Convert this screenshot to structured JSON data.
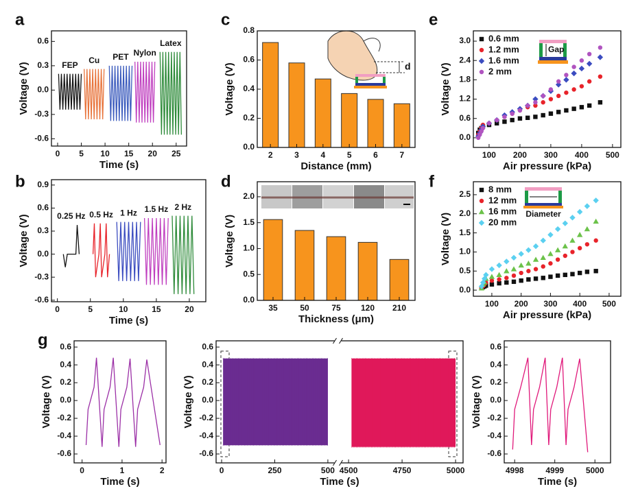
{
  "chart_data": [
    {
      "type": "line",
      "label": "a",
      "xlabel": "Time (s)",
      "ylabel": "Voltage (V)",
      "xlim": [
        -1.3,
        27.2
      ],
      "ylim": [
        -0.69,
        0.73
      ],
      "xticks": [
        0,
        5,
        10,
        15,
        20,
        25
      ],
      "yticks": [
        -0.6,
        -0.3,
        {
          "value": 0,
          "label": "0.0"
        },
        0.3,
        0.6
      ],
      "series": [
        {
          "name": "FEP",
          "color": "#111111",
          "x": [
            0.2,
            0.5,
            0.8,
            1.1,
            1.4,
            1.7,
            2.0,
            2.3,
            2.6,
            2.9,
            3.2,
            3.5,
            3.8,
            4.1,
            4.4,
            4.7,
            5.0
          ],
          "values": [
            0.2,
            -0.24,
            0.2,
            -0.24,
            0.2,
            -0.24,
            0.2,
            -0.24,
            0.2,
            -0.24,
            0.2,
            -0.24,
            0.2,
            -0.24,
            0.2,
            -0.24,
            0.2
          ]
        },
        {
          "name": "Cu",
          "color": "#e8743b",
          "x": [
            5.6,
            5.9,
            6.2,
            6.5,
            6.8,
            7.1,
            7.4,
            7.7,
            8.0,
            8.3,
            8.6,
            8.9,
            9.2,
            9.5,
            9.8
          ],
          "values": [
            0.26,
            -0.36,
            0.26,
            -0.36,
            0.26,
            -0.36,
            0.26,
            -0.36,
            0.26,
            -0.36,
            0.26,
            -0.36,
            0.26,
            -0.36,
            0.26
          ]
        },
        {
          "name": "PET",
          "color": "#3b5bbd",
          "x": [
            10.9,
            11.2,
            11.5,
            11.8,
            12.1,
            12.4,
            12.7,
            13.0,
            13.3,
            13.6,
            13.9,
            14.2,
            14.5,
            14.8,
            15.1,
            15.4,
            15.7
          ],
          "values": [
            0.3,
            -0.38,
            0.3,
            -0.38,
            0.3,
            -0.38,
            0.3,
            -0.38,
            0.3,
            -0.38,
            0.3,
            -0.38,
            0.3,
            -0.38,
            0.3,
            -0.38,
            0.3
          ]
        },
        {
          "name": "Nylon",
          "color": "#c040c0",
          "x": [
            16.3,
            16.6,
            16.9,
            17.2,
            17.5,
            17.8,
            18.1,
            18.4,
            18.7,
            19.0,
            19.3,
            19.6,
            19.9,
            20.2,
            20.5
          ],
          "values": [
            0.35,
            -0.4,
            0.35,
            -0.4,
            0.35,
            -0.4,
            0.35,
            -0.4,
            0.35,
            -0.4,
            0.35,
            -0.4,
            0.35,
            -0.4,
            0.35
          ]
        },
        {
          "name": "Latex",
          "color": "#2e8b3a",
          "x": [
            21.6,
            21.9,
            22.2,
            22.5,
            22.8,
            23.1,
            23.4,
            23.7,
            24.0,
            24.3,
            24.6,
            24.9,
            25.2,
            25.5,
            25.8,
            26.1
          ],
          "values": [
            0.47,
            -0.55,
            0.47,
            -0.55,
            0.47,
            -0.55,
            0.47,
            -0.55,
            0.47,
            -0.55,
            0.47,
            -0.55,
            0.47,
            -0.55,
            0.47,
            -0.55
          ]
        }
      ]
    },
    {
      "type": "line",
      "label": "b",
      "xlabel": "Time (s)",
      "ylabel": "Voltage (V)",
      "xlim": [
        -0.9,
        22.5
      ],
      "ylim": [
        -0.62,
        0.97
      ],
      "xticks": [
        0,
        5,
        10,
        15,
        20
      ],
      "yticks": [
        -0.6,
        -0.3,
        {
          "value": 0,
          "label": "0.0"
        },
        0.3,
        0.6,
        0.9
      ],
      "series": [
        {
          "name": "0.25 Hz",
          "color": "#111111",
          "x": [
            0.9,
            1.2,
            1.5,
            2.8,
            3.0,
            3.3
          ],
          "values": [
            0,
            -0.17,
            0,
            0,
            0.38,
            0
          ]
        },
        {
          "name": "0.5 Hz",
          "color": "#e8232a",
          "x": [
            5.4,
            5.6,
            5.8,
            6.3,
            6.5,
            6.7,
            7.2,
            7.4,
            7.6,
            7.9
          ],
          "values": [
            0,
            0.4,
            -0.3,
            0,
            0.4,
            -0.3,
            0,
            0.4,
            -0.3,
            0
          ]
        },
        {
          "name": "1 Hz",
          "color": "#3b4cc0",
          "x": [
            9.0,
            9.3,
            9.6,
            9.9,
            10.2,
            10.5,
            10.8,
            11.1,
            11.4,
            11.7,
            12.0,
            12.3,
            12.6
          ],
          "values": [
            0.42,
            -0.35,
            0.42,
            -0.35,
            0.42,
            -0.35,
            0.42,
            -0.35,
            0.42,
            -0.35,
            0.42,
            -0.35,
            0.42
          ]
        },
        {
          "name": "1.5 Hz",
          "color": "#c040c0",
          "x": [
            13.2,
            13.5,
            13.8,
            14.1,
            14.4,
            14.7,
            15.0,
            15.3,
            15.6,
            15.9,
            16.2,
            16.5,
            16.8
          ],
          "values": [
            0.47,
            -0.4,
            0.47,
            -0.4,
            0.47,
            -0.4,
            0.47,
            -0.4,
            0.47,
            -0.4,
            0.47,
            -0.4,
            0.47
          ]
        },
        {
          "name": "2 Hz",
          "color": "#2e8b3a",
          "x": [
            17.4,
            17.7,
            18.0,
            18.3,
            18.6,
            18.9,
            19.2,
            19.5,
            19.8,
            20.1,
            20.4,
            20.7
          ],
          "values": [
            0.5,
            -0.52,
            0.5,
            -0.52,
            0.5,
            -0.52,
            0.5,
            -0.52,
            0.5,
            -0.52,
            0.5,
            -0.52
          ]
        }
      ]
    },
    {
      "type": "bar",
      "label": "c",
      "xlabel": "Distance (mm)",
      "ylabel": "Voltage (V)",
      "inset_label": "d",
      "color": "#f7941d",
      "categories": [
        "2",
        "3",
        "4",
        "5",
        "6",
        "7"
      ],
      "values": [
        0.72,
        0.58,
        0.47,
        0.37,
        0.33,
        0.3
      ],
      "ylim": [
        0,
        0.8
      ],
      "yticks": [
        {
          "value": 0,
          "label": "0.0"
        },
        0.2,
        0.4,
        0.6,
        0.8
      ]
    },
    {
      "type": "bar",
      "label": "d",
      "xlabel": "Thickness (μm)",
      "ylabel": "Voltage (V)",
      "color": "#f7941d",
      "categories": [
        "35",
        "50",
        "75",
        "120",
        "210"
      ],
      "values": [
        1.56,
        1.35,
        1.23,
        1.12,
        0.79
      ],
      "ylim": [
        0,
        2.29
      ],
      "yticks": [
        {
          "value": 0,
          "label": "0.0"
        },
        0.5,
        {
          "value": 1,
          "label": "1.0"
        },
        1.5,
        {
          "value": 2,
          "label": "2.0"
        }
      ]
    },
    {
      "type": "scatter",
      "label": "e",
      "xlabel": "Air pressure (kPa)",
      "ylabel": "Voltage (V)",
      "inset_label": "Gap",
      "xlim": [
        49,
        527
      ],
      "ylim": [
        -0.3,
        3.32
      ],
      "xticks": [
        100,
        200,
        300,
        400,
        500
      ],
      "yticks": [
        {
          "value": 0,
          "label": "0.0"
        },
        0.6,
        1.2,
        1.8,
        2.4,
        {
          "value": 3,
          "label": "3.0"
        }
      ],
      "series": [
        {
          "name": "0.6 mm",
          "color": "#111111",
          "marker": "square",
          "x": [
            65,
            70,
            75,
            80,
            100,
            125,
            150,
            175,
            200,
            225,
            250,
            275,
            300,
            325,
            350,
            375,
            400,
            425,
            460
          ],
          "values": [
            0.15,
            0.25,
            0.3,
            0.35,
            0.4,
            0.45,
            0.5,
            0.55,
            0.6,
            0.62,
            0.65,
            0.7,
            0.75,
            0.8,
            0.85,
            0.9,
            0.95,
            1.0,
            1.1
          ]
        },
        {
          "name": "1.2 mm",
          "color": "#e8232a",
          "marker": "circle",
          "x": [
            65,
            70,
            75,
            80,
            100,
            125,
            150,
            175,
            200,
            225,
            250,
            275,
            300,
            325,
            350,
            375,
            400,
            425,
            460
          ],
          "values": [
            0.1,
            0.2,
            0.3,
            0.4,
            0.45,
            0.55,
            0.65,
            0.75,
            0.85,
            0.95,
            1.0,
            1.1,
            1.2,
            1.3,
            1.4,
            1.5,
            1.6,
            1.75,
            1.9
          ]
        },
        {
          "name": "1.6 mm",
          "color": "#3b4cc0",
          "marker": "diamond",
          "x": [
            65,
            70,
            75,
            80,
            100,
            125,
            150,
            175,
            200,
            225,
            250,
            275,
            300,
            325,
            350,
            375,
            400,
            425,
            460
          ],
          "values": [
            0.05,
            0.15,
            0.25,
            0.35,
            0.45,
            0.55,
            0.7,
            0.8,
            0.9,
            1.0,
            1.2,
            1.3,
            1.45,
            1.65,
            1.8,
            2.0,
            2.15,
            2.3,
            2.5
          ]
        },
        {
          "name": "2 mm",
          "color": "#b054c0",
          "marker": "circle",
          "x": [
            65,
            70,
            75,
            80,
            100,
            125,
            150,
            175,
            200,
            225,
            250,
            275,
            300,
            325,
            350,
            375,
            400,
            425,
            460
          ],
          "values": [
            0.0,
            0.1,
            0.2,
            0.3,
            0.45,
            0.55,
            0.65,
            0.75,
            0.85,
            1.0,
            1.1,
            1.3,
            1.5,
            1.75,
            1.95,
            2.2,
            2.4,
            2.6,
            2.8
          ]
        }
      ]
    },
    {
      "type": "scatter",
      "label": "f",
      "xlabel": "Air pressure (kPa)",
      "ylabel": "Voltage (V)",
      "inset_label": "Diameter",
      "xlim": [
        37,
        540
      ],
      "ylim": [
        -0.16,
        2.84
      ],
      "xticks": [
        100,
        200,
        300,
        400,
        500
      ],
      "yticks": [
        {
          "value": 0,
          "label": "0.0"
        },
        0.5,
        {
          "value": 1,
          "label": "1.0"
        },
        1.5,
        {
          "value": 2,
          "label": "2.0"
        },
        2.5
      ],
      "series": [
        {
          "name": "8 mm",
          "color": "#111111",
          "marker": "square",
          "x": [
            65,
            70,
            75,
            80,
            100,
            125,
            150,
            175,
            200,
            225,
            250,
            275,
            300,
            325,
            350,
            375,
            400,
            425,
            455
          ],
          "values": [
            0.05,
            0.08,
            0.1,
            0.12,
            0.15,
            0.18,
            0.2,
            0.22,
            0.25,
            0.28,
            0.3,
            0.32,
            0.35,
            0.38,
            0.4,
            0.42,
            0.45,
            0.48,
            0.5
          ]
        },
        {
          "name": "12 mm",
          "color": "#e8232a",
          "marker": "circle",
          "x": [
            65,
            70,
            75,
            80,
            100,
            125,
            150,
            175,
            200,
            225,
            250,
            275,
            300,
            325,
            350,
            375,
            400,
            425,
            455
          ],
          "values": [
            0.05,
            0.1,
            0.15,
            0.2,
            0.25,
            0.28,
            0.32,
            0.38,
            0.45,
            0.5,
            0.55,
            0.62,
            0.7,
            0.8,
            0.9,
            1.0,
            1.1,
            1.2,
            1.3
          ]
        },
        {
          "name": "16 mm",
          "color": "#6cc24a",
          "marker": "triangle",
          "x": [
            65,
            70,
            75,
            80,
            100,
            125,
            150,
            175,
            200,
            225,
            250,
            275,
            300,
            325,
            350,
            375,
            400,
            425,
            455
          ],
          "values": [
            0.05,
            0.15,
            0.2,
            0.3,
            0.35,
            0.4,
            0.5,
            0.55,
            0.65,
            0.7,
            0.8,
            0.85,
            0.95,
            1.05,
            1.15,
            1.3,
            1.45,
            1.6,
            1.8
          ]
        },
        {
          "name": "20 mm",
          "color": "#5bd0f0",
          "marker": "diamond",
          "x": [
            65,
            70,
            75,
            80,
            100,
            125,
            150,
            175,
            200,
            225,
            250,
            275,
            300,
            325,
            350,
            375,
            400,
            425,
            455
          ],
          "values": [
            0.1,
            0.2,
            0.3,
            0.4,
            0.55,
            0.65,
            0.75,
            0.85,
            0.95,
            1.05,
            1.15,
            1.3,
            1.45,
            1.6,
            1.75,
            1.9,
            2.05,
            2.2,
            2.35
          ]
        }
      ]
    },
    {
      "type": "line",
      "label": "g",
      "xlabel": "Time (s)",
      "ylabel": "Voltage (V)",
      "xlim": [
        -0.2,
        2.1
      ],
      "ylim": [
        -0.7,
        0.67
      ],
      "xticks": [
        0,
        1,
        2
      ],
      "yticks": [
        -0.6,
        -0.4,
        -0.2,
        {
          "value": 0,
          "label": "0.0"
        },
        0.2,
        0.4,
        0.6
      ],
      "series": [
        {
          "color": "#9b2fa6",
          "x": [
            0.1,
            0.15,
            0.3,
            0.36,
            0.5,
            0.55,
            0.7,
            0.78,
            0.92,
            0.97,
            1.12,
            1.2,
            1.34,
            1.39,
            1.54,
            1.62,
            1.95
          ],
          "values": [
            -0.5,
            -0.1,
            0.15,
            0.48,
            -0.52,
            -0.1,
            0.15,
            0.48,
            -0.52,
            -0.1,
            0.15,
            0.47,
            -0.52,
            -0.1,
            0.15,
            0.46,
            -0.5
          ]
        }
      ]
    },
    {
      "type": "envelope",
      "xlabel": "Time (s)",
      "ylabel": "Voltage (V)",
      "ylim": [
        -0.7,
        0.67
      ],
      "yticks": [
        -0.6,
        -0.4,
        -0.2,
        {
          "value": 0,
          "label": "0.0"
        },
        0.2,
        0.4,
        0.6
      ],
      "segments": [
        {
          "xlim": [
            -26,
            539
          ],
          "xticks": [
            0,
            250,
            500
          ]
        },
        {
          "xlim": [
            4458,
            5035
          ],
          "xticks": [
            4500,
            4750,
            5000
          ]
        }
      ],
      "series": [
        {
          "color": "#6a2c91",
          "x": [
            8,
            500
          ],
          "upper": [
            0.47,
            0.47
          ],
          "lower": [
            -0.5,
            -0.5
          ]
        },
        {
          "color": "#e0185a",
          "x": [
            4515,
            5000
          ],
          "upper": [
            0.47,
            0.47
          ],
          "lower": [
            -0.52,
            -0.52
          ]
        }
      ]
    },
    {
      "type": "line",
      "xlabel": "Time (s)",
      "ylabel": "Voltage (V)",
      "xlim": [
        4997.74,
        5000.39
      ],
      "ylim": [
        -0.7,
        0.67
      ],
      "xticks": [
        4998,
        4999,
        5000
      ],
      "yticks": [
        -0.6,
        -0.4,
        -0.2,
        {
          "value": 0,
          "label": "0.0"
        },
        0.2,
        0.4,
        0.6
      ],
      "series": [
        {
          "color": "#e0187a",
          "x": [
            4997.95,
            4998.0,
            4998.15,
            4998.33,
            4998.42,
            4998.47,
            4998.62,
            4998.76,
            4998.85,
            4998.9,
            4999.05,
            4999.19,
            4999.28,
            4999.33,
            4999.48,
            4999.62,
            4999.82
          ],
          "values": [
            -0.55,
            -0.1,
            0.15,
            0.48,
            -0.5,
            -0.1,
            0.15,
            0.48,
            -0.5,
            -0.1,
            0.15,
            0.48,
            -0.5,
            -0.1,
            0.15,
            0.47,
            -0.58
          ]
        }
      ]
    }
  ]
}
